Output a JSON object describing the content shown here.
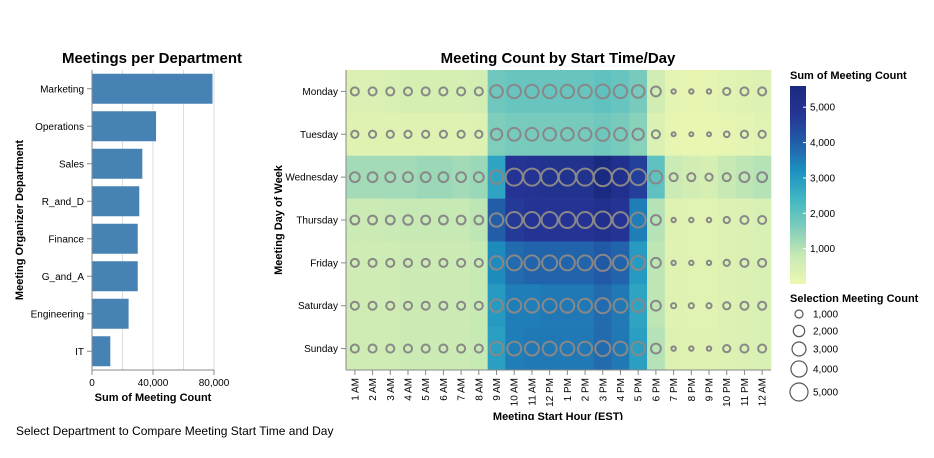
{
  "footer": "Select Department to Compare Meeting Start Time and Day",
  "chart_data": [
    {
      "type": "bar",
      "orientation": "horizontal",
      "title": "Meetings per Department",
      "xlabel": "Sum of Meeting Count",
      "ylabel": "Meeting Organizer Department",
      "categories": [
        "Marketing",
        "Operations",
        "Sales",
        "R_and_D",
        "Finance",
        "G_and_A",
        "Engineering",
        "IT"
      ],
      "values": [
        79000,
        42000,
        33000,
        31000,
        30000,
        30000,
        24000,
        12000
      ],
      "xlim": [
        0,
        80000
      ],
      "xticks": [
        0,
        40000,
        80000
      ],
      "xtick_labels": [
        "0",
        "40,000",
        "80,000"
      ],
      "grid": true,
      "color": "#4682b4"
    },
    {
      "type": "heatmap",
      "title": "Meeting Count by Start Time/Day",
      "xlabel": "Meeting Start Hour (EST)",
      "ylabel": "Meeting Day of Week",
      "x": [
        "1 AM",
        "2 AM",
        "3 AM",
        "4 AM",
        "5 AM",
        "6 AM",
        "7 AM",
        "8 AM",
        "9 AM",
        "10 AM",
        "11 AM",
        "12 PM",
        "1 PM",
        "2 PM",
        "3 PM",
        "4 PM",
        "5 PM",
        "6 PM",
        "7 PM",
        "8 PM",
        "9 PM",
        "10 PM",
        "11 PM",
        "12 AM"
      ],
      "y": [
        "Monday",
        "Tuesday",
        "Wednesday",
        "Thursday",
        "Friday",
        "Saturday",
        "Sunday"
      ],
      "values": [
        [
          400,
          400,
          450,
          500,
          500,
          500,
          500,
          550,
          1800,
          1900,
          1900,
          1900,
          1900,
          1900,
          2000,
          1900,
          1700,
          600,
          200,
          150,
          150,
          250,
          300,
          350
        ],
        [
          300,
          300,
          300,
          300,
          300,
          300,
          300,
          350,
          1600,
          1700,
          1700,
          1700,
          1700,
          1700,
          1800,
          1700,
          1500,
          400,
          150,
          100,
          100,
          150,
          200,
          250
        ],
        [
          1200,
          1200,
          1200,
          1200,
          1300,
          1300,
          1200,
          1300,
          2800,
          4800,
          4900,
          5000,
          5000,
          5000,
          5600,
          5100,
          4600,
          2000,
          700,
          600,
          500,
          800,
          900,
          1000
        ],
        [
          700,
          700,
          750,
          800,
          800,
          800,
          800,
          900,
          4000,
          4700,
          4800,
          4800,
          4800,
          4800,
          5100,
          4800,
          3500,
          1000,
          300,
          250,
          250,
          350,
          400,
          450
        ],
        [
          650,
          650,
          650,
          700,
          700,
          700,
          700,
          800,
          3300,
          3800,
          3900,
          3900,
          3900,
          3900,
          4100,
          3900,
          3000,
          900,
          300,
          250,
          250,
          350,
          400,
          450
        ],
        [
          650,
          650,
          650,
          700,
          700,
          700,
          700,
          800,
          3000,
          3500,
          3500,
          3600,
          3600,
          3600,
          3800,
          3600,
          2800,
          900,
          300,
          250,
          250,
          350,
          400,
          450
        ],
        [
          650,
          650,
          650,
          700,
          700,
          700,
          700,
          800,
          2900,
          3500,
          3600,
          3600,
          3600,
          3600,
          3800,
          3600,
          2900,
          1000,
          350,
          300,
          300,
          350,
          400,
          450
        ]
      ],
      "selection": [
        [
          1000,
          1000,
          1000,
          1000,
          1000,
          1000,
          1000,
          1000,
          2500,
          2800,
          2800,
          2800,
          2800,
          2800,
          3000,
          2800,
          2500,
          1500,
          300,
          300,
          300,
          800,
          1000,
          1000
        ],
        [
          800,
          800,
          800,
          800,
          800,
          800,
          800,
          800,
          2000,
          2500,
          2500,
          2500,
          2500,
          2500,
          2700,
          2500,
          2000,
          1000,
          250,
          250,
          250,
          500,
          800,
          800
        ],
        [
          1500,
          1500,
          1500,
          1500,
          1500,
          1500,
          1500,
          1500,
          2800,
          4500,
          4500,
          4500,
          4500,
          4500,
          5000,
          4500,
          4000,
          2500,
          1000,
          1000,
          800,
          1000,
          1500,
          1500
        ],
        [
          1200,
          1200,
          1200,
          1400,
          1200,
          1200,
          1200,
          1200,
          2800,
          4000,
          4000,
          4000,
          4000,
          4000,
          4500,
          3800,
          3500,
          1500,
          300,
          300,
          300,
          600,
          1000,
          1000
        ],
        [
          1000,
          1000,
          1000,
          1000,
          1000,
          1000,
          1000,
          1000,
          2800,
          3500,
          3500,
          3500,
          3500,
          3500,
          4000,
          3500,
          3000,
          1500,
          300,
          300,
          300,
          600,
          1000,
          1000
        ],
        [
          1000,
          1000,
          1000,
          1000,
          1000,
          1000,
          1000,
          1000,
          2500,
          3000,
          3000,
          3000,
          3000,
          3000,
          3500,
          3000,
          2500,
          1500,
          400,
          400,
          400,
          800,
          1000,
          1000
        ],
        [
          1000,
          1000,
          1000,
          1000,
          1000,
          1000,
          1000,
          1000,
          2800,
          3000,
          3000,
          3000,
          3000,
          3000,
          3500,
          3000,
          2800,
          1500,
          300,
          300,
          300,
          800,
          1000,
          1000
        ]
      ],
      "color_legend": {
        "title": "Sum of Meeting Count",
        "domain": [
          0,
          5600
        ],
        "ticks": [
          1000,
          2000,
          3000,
          4000,
          5000
        ],
        "tick_labels": [
          "1,000",
          "2,000",
          "3,000",
          "4,000",
          "5,000"
        ],
        "scheme": [
          "#edf8b1",
          "#c7e9b4",
          "#7fcdbb",
          "#41b6c4",
          "#1d91c0",
          "#225ea8",
          "#253494",
          "#1a2a80"
        ]
      },
      "size_legend": {
        "title": "Selection Meeting Count",
        "values": [
          1000,
          2000,
          3000,
          4000,
          5000
        ],
        "labels": [
          "1,000",
          "2,000",
          "3,000",
          "4,000",
          "5,000"
        ]
      },
      "circle_stroke": "#888888"
    }
  ]
}
